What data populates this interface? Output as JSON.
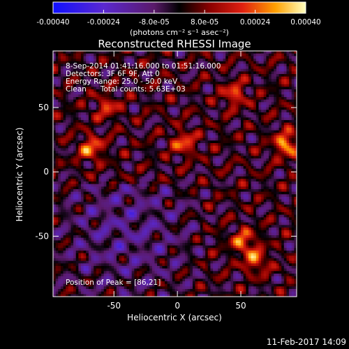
{
  "chart_data": {
    "type": "heatmap",
    "title": "Reconstructed RHESSI Image",
    "xlabel": "Heliocentric X (arcsec)",
    "ylabel": "Heliocentric Y (arcsec)",
    "xlim": [
      -98,
      94
    ],
    "ylim": [
      -97,
      94
    ],
    "x_ticks": [
      "-50",
      "0",
      "50"
    ],
    "y_ticks": [
      "50",
      "0",
      "-50"
    ],
    "x_tick_values": [
      -50,
      0,
      50
    ],
    "y_tick_values": [
      50,
      0,
      -50
    ],
    "colorbar": {
      "ticks": [
        "-0.00040",
        "-0.00024",
        "-8.0e-05",
        "8.0e-05",
        "0.00024",
        "0.00040"
      ],
      "tick_values": [
        -0.0004,
        -0.00024,
        -8e-05,
        8e-05,
        0.00024,
        0.0004
      ],
      "range": [
        -0.0004,
        0.0004
      ],
      "label": "(photons cm⁻² s⁻¹ asec⁻²)"
    },
    "annotations": {
      "time": "8-Sep-2014 01:41:16.000 to 01:51:16.000",
      "detectors": "Detectors: 3F 6F 9F, Att 0",
      "energy": "Energy Range: 25.0 - 50.0 keV",
      "method": "Clean      Total counts: 5.63E+03",
      "peak": "Position of Peak = [86,21]"
    },
    "peak_position": [
      86,
      21
    ],
    "bright_regions": [
      {
        "x": 86,
        "y": 21,
        "value": 0.0004
      },
      {
        "x": -68,
        "y": 18,
        "value": 0.00034
      },
      {
        "x": 5,
        "y": 22,
        "value": 0.0003
      },
      {
        "x": 45,
        "y": 60,
        "value": 0.00028
      },
      {
        "x": 52,
        "y": -55,
        "value": 0.00032
      },
      {
        "x": 62,
        "y": -70,
        "value": 0.0003
      },
      {
        "x": -55,
        "y": 50,
        "value": 0.00024
      }
    ]
  },
  "footer": {
    "timestamp": "11-Feb-2017 14:09"
  }
}
